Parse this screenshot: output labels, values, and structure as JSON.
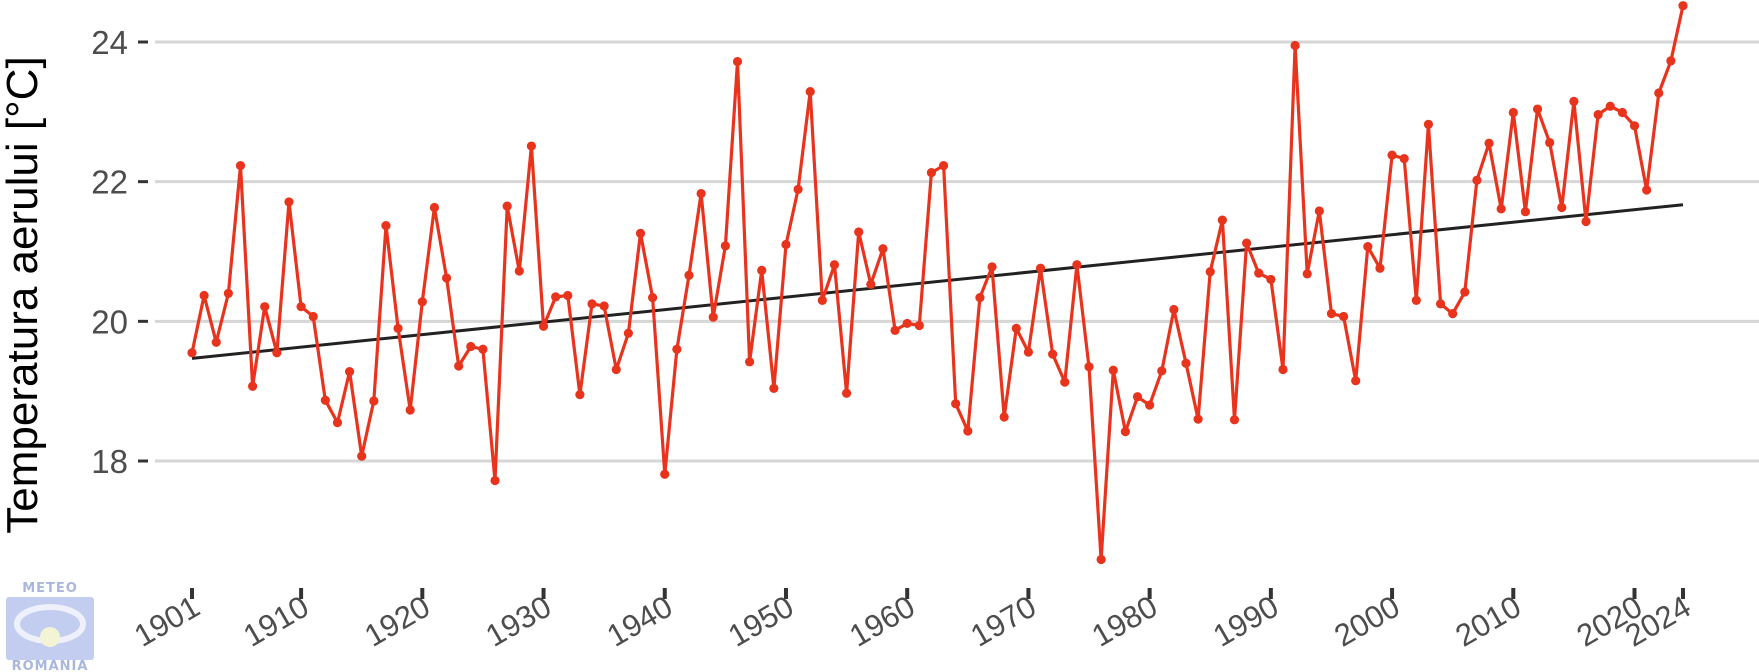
{
  "colors": {
    "series": "#e8341c",
    "trend": "#222222",
    "grid": "#d6d6d6",
    "tick": "#333333",
    "tick_label": "#4d4d4d",
    "logo": "#a9b7dc"
  },
  "logo": {
    "top_text": "METEO",
    "bottom_text": "ROMANIA"
  },
  "chart_data": {
    "type": "line",
    "title": "",
    "xlabel": "",
    "ylabel": "Temperatura aerului [°C]",
    "xlim": [
      1901,
      2024
    ],
    "ylim": [
      16.3,
      24.6
    ],
    "yticks": [
      18,
      20,
      22,
      24
    ],
    "xticks": [
      1901,
      1910,
      1920,
      1930,
      1940,
      1950,
      1960,
      1970,
      1980,
      1990,
      2000,
      2010,
      2020,
      2024
    ],
    "grid": "horizontal",
    "series": [
      {
        "x": [
          1901,
          1902,
          1903,
          1904,
          1905,
          1906,
          1907,
          1908,
          1909,
          1910,
          1911,
          1912,
          1913,
          1914,
          1915,
          1916,
          1917,
          1918,
          1919,
          1920,
          1921,
          1922,
          1923,
          1924,
          1925,
          1926,
          1927,
          1928,
          1929,
          1930,
          1931,
          1932,
          1933,
          1934,
          1935,
          1936,
          1937,
          1938,
          1939,
          1940,
          1941,
          1942,
          1943,
          1944,
          1945,
          1946,
          1947,
          1948,
          1949,
          1950,
          1951,
          1952,
          1953,
          1954,
          1955,
          1956,
          1957,
          1958,
          1959,
          1960,
          1961,
          1962,
          1963,
          1964,
          1965,
          1966,
          1967,
          1968,
          1969,
          1970,
          1971,
          1972,
          1973,
          1974,
          1975,
          1976,
          1977,
          1978,
          1979,
          1980,
          1981,
          1982,
          1983,
          1984,
          1985,
          1986,
          1987,
          1988,
          1989,
          1990,
          1991,
          1992,
          1993,
          1994,
          1995,
          1996,
          1997,
          1998,
          1999,
          2000,
          2001,
          2002,
          2003,
          2004,
          2005,
          2006,
          2007,
          2008,
          2009,
          2010,
          2011,
          2012,
          2013,
          2014,
          2015,
          2016,
          2017,
          2018,
          2019,
          2020,
          2021,
          2022,
          2023,
          2024
        ],
        "values": [
          19.55,
          20.37,
          19.7,
          20.4,
          22.23,
          19.07,
          20.21,
          19.55,
          21.71,
          20.21,
          20.07,
          18.87,
          18.55,
          19.28,
          18.07,
          18.86,
          21.37,
          19.9,
          18.73,
          20.28,
          21.63,
          20.62,
          19.36,
          19.64,
          19.6,
          17.72,
          21.65,
          20.72,
          22.51,
          19.93,
          20.35,
          20.37,
          18.95,
          20.25,
          20.22,
          19.31,
          19.83,
          21.26,
          20.34,
          17.81,
          19.6,
          20.66,
          21.83,
          20.06,
          21.08,
          23.72,
          19.42,
          20.73,
          19.04,
          21.1,
          21.89,
          23.29,
          20.3,
          20.81,
          18.97,
          21.28,
          20.53,
          21.04,
          19.87,
          19.97,
          19.94,
          22.13,
          22.23,
          18.82,
          18.43,
          20.34,
          20.78,
          18.63,
          19.9,
          19.56,
          20.76,
          19.53,
          19.13,
          20.81,
          19.35,
          16.59,
          19.3,
          18.42,
          18.92,
          18.8,
          19.29,
          20.17,
          19.4,
          18.6,
          20.71,
          21.45,
          18.59,
          21.12,
          20.69,
          20.6,
          19.31,
          23.95,
          20.68,
          21.58,
          20.11,
          20.07,
          19.15,
          21.07,
          20.76,
          22.38,
          22.33,
          20.3,
          22.82,
          20.25,
          20.11,
          20.42,
          22.02,
          22.55,
          21.61,
          22.99,
          21.57,
          23.04,
          22.56,
          21.63,
          23.15,
          21.43,
          22.96,
          23.08,
          22.99,
          22.8,
          21.88,
          23.27,
          23.73,
          24.52
        ]
      }
    ],
    "trend": {
      "x": [
        1901,
        2024
      ],
      "y": [
        19.47,
        21.67
      ]
    }
  }
}
